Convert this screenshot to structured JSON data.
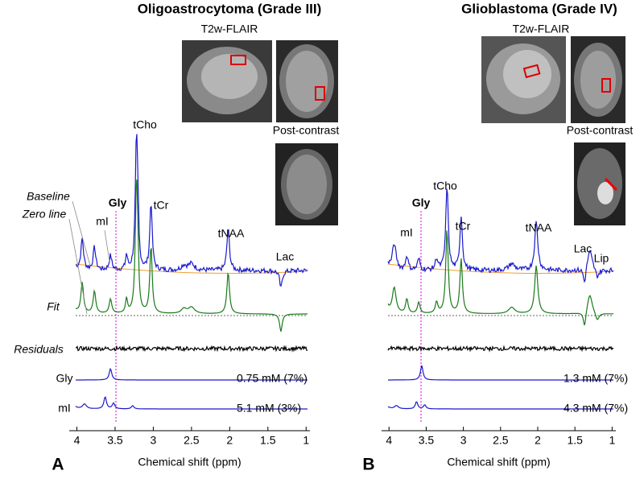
{
  "panels": [
    {
      "letter": "A",
      "title": "Oligoastrocytoma (Grade III)",
      "image_top_label": "T2w-FLAIR",
      "image_bottom_label": "Post-contrast",
      "peak_labels": [
        "tCho",
        "Gly",
        "mI",
        "tCr",
        "tNAA",
        "Lac"
      ],
      "row_labels": [
        "Baseline",
        "Zero line",
        "Fit",
        "Residuals",
        "Gly",
        "mI"
      ],
      "concentrations": [
        "0.75 mM (7%)",
        "5.1 mM (3%)"
      ],
      "x_axis_title": "Chemical shift (ppm)",
      "xlim": [
        4.1,
        0.95
      ],
      "xticks": [
        4,
        3.5,
        3,
        2.5,
        2,
        1.5,
        1
      ]
    },
    {
      "letter": "B",
      "title": "Glioblastoma (Grade IV)",
      "image_top_label": "T2w-FLAIR",
      "image_bottom_label": "Post-contrast",
      "peak_labels": [
        "tCho",
        "Gly",
        "mI",
        "tCr",
        "tNAA",
        "Lac",
        "Lip"
      ],
      "concentrations": [
        "1.3 mM (7%)",
        "4.3 mM (7%)"
      ],
      "x_axis_title": "Chemical shift (ppm)",
      "xlim": [
        4.1,
        0.95
      ],
      "xticks": [
        4,
        3.5,
        3,
        2.5,
        2,
        1.5,
        1
      ]
    }
  ]
}
